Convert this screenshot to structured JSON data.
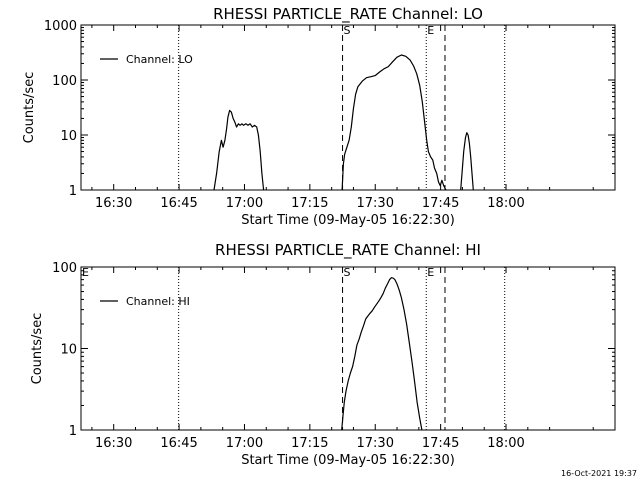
{
  "footer": {
    "timestamp": "16-Oct-2021 19:37"
  },
  "chart_data": [
    {
      "type": "line",
      "title": "RHESSI PARTICLE_RATE Channel: LO",
      "xlabel": "Start Time (09-May-05 16:22:30)",
      "ylabel": "Counts/sec",
      "yscale": "log",
      "xlim_minutes": [
        982.5,
        1105.0
      ],
      "ylim": [
        1,
        1000
      ],
      "x_tick_labels": [
        "16:30",
        "16:45",
        "17:00",
        "17:15",
        "17:30",
        "17:45",
        "18:00"
      ],
      "x_tick_minutes": [
        990,
        1005,
        1020,
        1035,
        1050,
        1065,
        1080
      ],
      "y_tick_labels": [
        "1",
        "10",
        "100",
        "1000"
      ],
      "y_tick_values": [
        1,
        10,
        100,
        1000
      ],
      "legend": {
        "label": "Channel: LO",
        "position": "top-left"
      },
      "markers": [
        {
          "label": "S",
          "minute": 1042.5,
          "style": "dashed"
        },
        {
          "label": "E",
          "minute": 1061.7,
          "style": "dotted"
        },
        {
          "label": "",
          "minute": 1066.0,
          "style": "dashed"
        },
        {
          "label": "",
          "minute": 1004.9,
          "style": "dotted"
        },
        {
          "label": "",
          "minute": 1079.7,
          "style": "dotted"
        }
      ],
      "series": [
        {
          "name": "Channel: LO",
          "segments": [
            [
              [
                1013.0,
                1
              ],
              [
                1013.6,
                2
              ],
              [
                1014.2,
                5
              ],
              [
                1014.7,
                8
              ],
              [
                1015.1,
                6
              ],
              [
                1015.5,
                8
              ],
              [
                1015.9,
                13
              ],
              [
                1016.2,
                21
              ],
              [
                1016.6,
                28
              ],
              [
                1017.0,
                26
              ],
              [
                1017.4,
                20
              ],
              [
                1017.8,
                17
              ],
              [
                1018.2,
                14
              ],
              [
                1018.6,
                16
              ],
              [
                1019.0,
                15
              ],
              [
                1019.4,
                16
              ],
              [
                1019.8,
                15
              ],
              [
                1020.3,
                16
              ],
              [
                1020.8,
                15
              ],
              [
                1021.3,
                16
              ],
              [
                1021.8,
                14
              ],
              [
                1022.3,
                15
              ],
              [
                1022.8,
                14
              ],
              [
                1023.2,
                10
              ],
              [
                1023.6,
                5
              ],
              [
                1024.0,
                2
              ],
              [
                1024.4,
                1
              ]
            ],
            [
              [
                1042.4,
                1
              ],
              [
                1042.7,
                3
              ],
              [
                1043.0,
                4.5
              ],
              [
                1043.5,
                6
              ],
              [
                1044.0,
                8
              ],
              [
                1044.5,
                14
              ],
              [
                1045.0,
                30
              ],
              [
                1045.5,
                55
              ],
              [
                1046.0,
                75
              ],
              [
                1047.0,
                95
              ],
              [
                1048.0,
                110
              ],
              [
                1049.0,
                115
              ],
              [
                1050.0,
                120
              ],
              [
                1051.0,
                140
              ],
              [
                1052.0,
                160
              ],
              [
                1053.0,
                175
              ],
              [
                1054.0,
                215
              ],
              [
                1055.0,
                260
              ],
              [
                1056.0,
                285
              ],
              [
                1057.0,
                270
              ],
              [
                1058.0,
                230
              ],
              [
                1058.8,
                180
              ],
              [
                1059.5,
                130
              ],
              [
                1060.2,
                80
              ],
              [
                1060.8,
                40
              ],
              [
                1061.3,
                18
              ],
              [
                1061.8,
                8
              ],
              [
                1062.2,
                5
              ],
              [
                1062.7,
                4
              ],
              [
                1063.2,
                3.5
              ],
              [
                1063.6,
                2.5
              ],
              [
                1064.1,
                2
              ],
              [
                1064.5,
                1.4
              ],
              [
                1064.9,
                1.2
              ],
              [
                1065.3,
                1.5
              ],
              [
                1065.7,
                1.2
              ],
              [
                1066.2,
                1
              ]
            ],
            [
              [
                1069.6,
                1
              ],
              [
                1069.9,
                2
              ],
              [
                1070.3,
                5
              ],
              [
                1070.7,
                9
              ],
              [
                1071.0,
                11
              ],
              [
                1071.3,
                10
              ],
              [
                1071.6,
                7
              ],
              [
                1071.9,
                4
              ],
              [
                1072.2,
                2
              ],
              [
                1072.5,
                1
              ]
            ]
          ]
        }
      ]
    },
    {
      "type": "line",
      "title": "RHESSI PARTICLE_RATE Channel: HI",
      "xlabel": "Start Time (09-May-05 16:22:30)",
      "ylabel": "Counts/sec",
      "yscale": "log",
      "xlim_minutes": [
        982.5,
        1105.0
      ],
      "ylim": [
        1,
        100
      ],
      "x_tick_labels": [
        "16:30",
        "16:45",
        "17:00",
        "17:15",
        "17:30",
        "17:45",
        "18:00"
      ],
      "x_tick_minutes": [
        990,
        1005,
        1020,
        1035,
        1050,
        1065,
        1080
      ],
      "y_tick_labels": [
        "1",
        "10",
        "100"
      ],
      "y_tick_values": [
        1,
        10,
        100
      ],
      "legend": {
        "label": "Channel: HI",
        "position": "top-left"
      },
      "corner_marks": [
        {
          "label": "E",
          "position": "top-left"
        }
      ],
      "markers": [
        {
          "label": "S",
          "minute": 1042.5,
          "style": "dashed"
        },
        {
          "label": "E",
          "minute": 1061.7,
          "style": "dotted"
        },
        {
          "label": "",
          "minute": 1066.0,
          "style": "dashed"
        },
        {
          "label": "",
          "minute": 1004.9,
          "style": "dotted"
        },
        {
          "label": "",
          "minute": 1079.7,
          "style": "dotted"
        }
      ],
      "series": [
        {
          "name": "Channel: HI",
          "segments": [
            [
              [
                1042.3,
                1
              ],
              [
                1042.6,
                1.5
              ],
              [
                1042.9,
                2.2
              ],
              [
                1043.3,
                3
              ],
              [
                1043.8,
                4
              ],
              [
                1044.3,
                5
              ],
              [
                1044.8,
                6
              ],
              [
                1045.3,
                8
              ],
              [
                1045.8,
                11
              ],
              [
                1046.3,
                13
              ],
              [
                1046.8,
                16
              ],
              [
                1047.3,
                19
              ],
              [
                1047.8,
                23
              ],
              [
                1048.3,
                25
              ],
              [
                1048.8,
                27
              ],
              [
                1049.3,
                29
              ],
              [
                1049.8,
                32
              ],
              [
                1050.3,
                35
              ],
              [
                1050.8,
                38
              ],
              [
                1051.3,
                42
              ],
              [
                1051.8,
                47
              ],
              [
                1052.3,
                55
              ],
              [
                1052.8,
                62
              ],
              [
                1053.3,
                70
              ],
              [
                1053.7,
                74
              ],
              [
                1054.1,
                73
              ],
              [
                1054.5,
                70
              ],
              [
                1055.0,
                62
              ],
              [
                1055.5,
                52
              ],
              [
                1056.0,
                42
              ],
              [
                1056.6,
                30
              ],
              [
                1057.2,
                20
              ],
              [
                1057.8,
                12
              ],
              [
                1058.4,
                7
              ],
              [
                1059.0,
                4
              ],
              [
                1059.6,
                2.2
              ],
              [
                1060.2,
                1.4
              ],
              [
                1060.7,
                1
              ]
            ]
          ]
        }
      ]
    }
  ]
}
